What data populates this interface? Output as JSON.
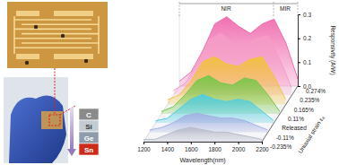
{
  "chart_data": {
    "type": "area",
    "x_label": "Wavelength(nm)",
    "y_label": "Responsivity (A/W)",
    "z_label": "Uniaxial strain εₐ",
    "annotations": [
      "NIR",
      "MIR"
    ],
    "inset_labels": [
      "C",
      "Si",
      "Ge",
      "Sn"
    ],
    "x": [
      1200,
      1300,
      1400,
      1500,
      1600,
      1700,
      1800,
      1900,
      2000,
      2100,
      2200
    ],
    "xlim": [
      1200,
      2200
    ],
    "xticks": [
      1200,
      1400,
      1600,
      1800,
      2000,
      2200
    ],
    "ylim": [
      0,
      0.3
    ],
    "yticks": [
      {
        "value": 0,
        "label": "0.0"
      },
      0.1,
      0.2,
      0.3
    ],
    "grid": false,
    "series": [
      {
        "name": "0.274%",
        "color": "#f06aae",
        "values": [
          0.02,
          0.06,
          0.15,
          0.26,
          0.29,
          0.25,
          0.22,
          0.26,
          0.28,
          0.18,
          0.03
        ]
      },
      {
        "name": "0.235%",
        "color": "#f59cc6",
        "values": [
          0.02,
          0.05,
          0.13,
          0.23,
          0.26,
          0.22,
          0.2,
          0.24,
          0.25,
          0.15,
          0.03
        ]
      },
      {
        "name": "0.165%",
        "color": "#f2c23e",
        "values": [
          0.02,
          0.04,
          0.1,
          0.18,
          0.2,
          0.17,
          0.16,
          0.19,
          0.2,
          0.12,
          0.02
        ]
      },
      {
        "name": "0.11%",
        "color": "#76c74a",
        "values": [
          0.01,
          0.03,
          0.08,
          0.14,
          0.16,
          0.13,
          0.12,
          0.15,
          0.14,
          0.08,
          0.01
        ]
      },
      {
        "name": "Released",
        "color": "#52cde0",
        "values": [
          0.01,
          0.02,
          0.06,
          0.1,
          0.12,
          0.1,
          0.09,
          0.1,
          0.09,
          0.05,
          0.01
        ]
      },
      {
        "name": "-0.11%",
        "color": "#a3b0e2",
        "values": [
          0.01,
          0.02,
          0.04,
          0.07,
          0.08,
          0.07,
          0.06,
          0.06,
          0.05,
          0.03,
          0.01
        ]
      },
      {
        "name": "-0.235%",
        "color": "#b8bccb",
        "values": [
          0.01,
          0.01,
          0.03,
          0.05,
          0.06,
          0.05,
          0.04,
          0.04,
          0.03,
          0.02,
          0.01
        ]
      }
    ]
  }
}
